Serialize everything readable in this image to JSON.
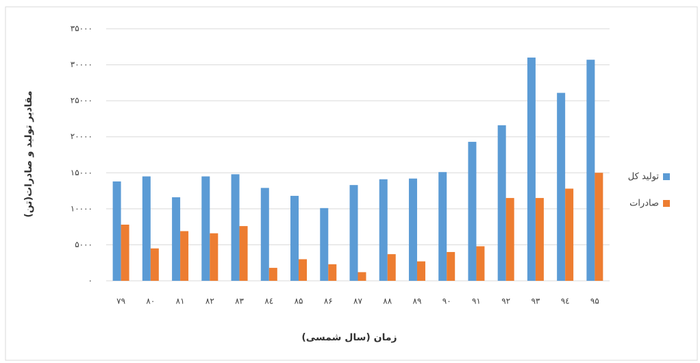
{
  "chart_data": {
    "type": "bar",
    "y_title": "مقادیر تولید و صادرات(تن)",
    "x_title": "زمان (سال شمسی)",
    "categories": [
      "۷۹",
      "۸۰",
      "۸۱",
      "۸۲",
      "۸۳",
      "۸٤",
      "۸۵",
      "۸۶",
      "۸۷",
      "۸۸",
      "۸۹",
      "۹۰",
      "۹۱",
      "۹۲",
      "۹۳",
      "۹٤",
      "۹۵"
    ],
    "series": [
      {
        "name": "تولید کل",
        "color": "#5b9bd5",
        "values": [
          13800,
          14500,
          11600,
          14500,
          14800,
          12900,
          11800,
          10100,
          13300,
          14100,
          14200,
          15100,
          19300,
          21600,
          31000,
          26100,
          30700
        ]
      },
      {
        "name": "صادرات",
        "color": "#ed7d31",
        "values": [
          7800,
          4500,
          6900,
          6600,
          7600,
          1800,
          3000,
          2300,
          1200,
          3700,
          2700,
          4000,
          4800,
          11500,
          11500,
          12800,
          15000
        ]
      }
    ],
    "ylim": [
      0,
      35000
    ],
    "yticks": [
      {
        "value": 0,
        "label": "۰"
      },
      {
        "value": 5000,
        "label": "۵۰۰۰"
      },
      {
        "value": 10000,
        "label": "۱۰۰۰۰"
      },
      {
        "value": 15000,
        "label": "۱۵۰۰۰"
      },
      {
        "value": 20000,
        "label": "۲۰۰۰۰"
      },
      {
        "value": 25000,
        "label": "۲۵۰۰۰"
      },
      {
        "value": 30000,
        "label": "۳۰۰۰۰"
      },
      {
        "value": 35000,
        "label": "۳۵۰۰۰"
      }
    ],
    "grid": true,
    "legend": "right"
  }
}
